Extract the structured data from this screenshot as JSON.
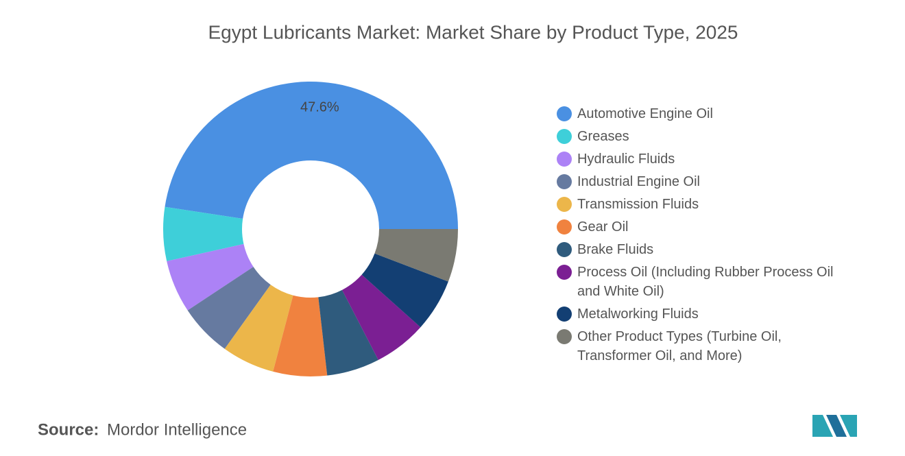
{
  "chart_data": {
    "type": "donut",
    "title": "Egypt Lubricants Market: Market Share by Product Type, 2025",
    "categories": [
      "Automotive Engine Oil",
      "Greases",
      "Hydraulic Fluids",
      "Industrial Engine Oil",
      "Transmission Fluids",
      "Gear Oil",
      "Brake Fluids",
      "Process Oil (Including Rubber Process Oil and White Oil)",
      "Metalworking Fluids",
      "Other Product Types (Turbine Oil, Transformer Oil, and More)"
    ],
    "values": [
      47.6,
      5.9,
      5.8,
      5.8,
      5.8,
      5.9,
      5.8,
      5.8,
      5.8,
      5.8
    ],
    "value_labels": [
      "47.6%",
      null,
      null,
      null,
      null,
      null,
      null,
      null,
      null,
      null
    ],
    "colors": [
      "#4a90e2",
      "#3ecfd9",
      "#ac82f6",
      "#667aa0",
      "#ecb64a",
      "#f0823f",
      "#2f5b7d",
      "#7b1f93",
      "#133f73",
      "#7a7a72"
    ],
    "legend": "right"
  },
  "source_label": "Source:",
  "source": "Mordor Intelligence"
}
